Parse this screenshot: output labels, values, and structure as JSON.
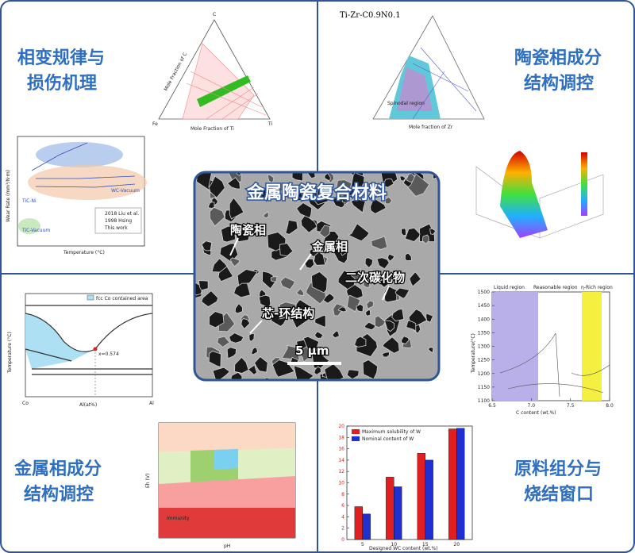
{
  "center": {
    "title": "金属陶瓷复合材料",
    "labels": [
      "陶瓷相",
      "金属相",
      "二次碳化物",
      "芯-环结构"
    ],
    "scale_bar": "5 μm"
  },
  "corners": {
    "top_left": [
      "相变规律与",
      "损伤机理"
    ],
    "top_right": [
      "陶瓷相成分",
      "结构调控"
    ],
    "bottom_left": [
      "金属相成分",
      "结构调控"
    ],
    "bottom_right": [
      "原料组分与",
      "烧结窗口"
    ]
  },
  "figures": {
    "ternary_fe_ti_c": {
      "apex": [
        "C",
        "Fe",
        "Ti"
      ],
      "x_label": "Mole Fraction of Ti",
      "y_label": "Mole Fraction of C"
    },
    "ternary_ti_zr": {
      "title": "Ti-Zr-C0.9N0.1",
      "region": "Spinodal region",
      "x_label": "Mole fraction of Zr"
    },
    "wear": {
      "y_label": "Wear Rate (mm³/N·m)",
      "x_label": "Temperature (°C)",
      "legend": [
        "2018 Liu et al.",
        "1998 Hsing",
        "This work"
      ],
      "tags": [
        "TiC-Ni",
        "TiC-Vacuum",
        "WC-Vacuum"
      ]
    },
    "co_al": {
      "legend": "fcc Co contained area",
      "annotation": "x=0.574",
      "x_label": "Al(at%)",
      "y_label": "Temperature (°C)",
      "ends": [
        "Co",
        "Al"
      ]
    },
    "pourbaix": {
      "x_label": "pH",
      "y_label": "Eh (V)",
      "region": "Immunity"
    },
    "phase_window": {
      "regions": [
        "Liquid region",
        "Reasonable region",
        "η-Rich region"
      ],
      "x_label": "C content (wt.%)",
      "y_label": "Temperature(°C)",
      "xlim": [
        6.5,
        8
      ],
      "xticks": [
        6.5,
        {
          "value": 7,
          "label": "7.0"
        },
        7.5,
        {
          "value": 8,
          "label": "8.0"
        }
      ],
      "ylim": [
        1100,
        1500
      ],
      "yticks": [
        1100,
        1150,
        1200,
        1250,
        1300,
        1350,
        1400,
        1450,
        1500
      ]
    },
    "bars": {
      "type": "bar",
      "categories": [
        "5",
        "10",
        "15",
        "20"
      ],
      "x_label": "Designed WC content (wt.%)",
      "ylim": [
        0,
        20
      ],
      "yticks": [
        0,
        2,
        4,
        6,
        8,
        10,
        12,
        14,
        16,
        18,
        20
      ],
      "series": [
        {
          "name": "Maximum solubility of W",
          "color": "#e02020",
          "values": [
            5.8,
            11,
            15.2,
            19.5
          ]
        },
        {
          "name": "Nominal content of W",
          "color": "#2030d0",
          "values": [
            4.5,
            9.3,
            14,
            19.6
          ]
        }
      ]
    }
  }
}
